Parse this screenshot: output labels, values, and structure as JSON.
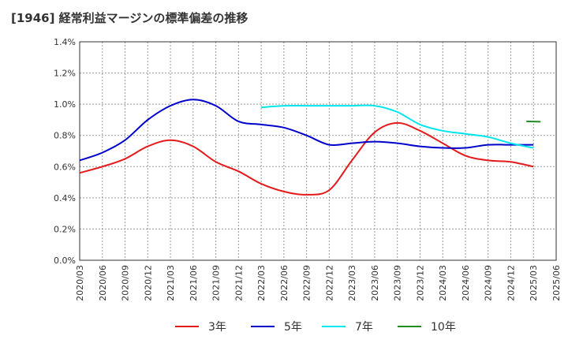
{
  "chart_data": {
    "type": "line",
    "title": "[1946]  経常利益マージンの標準偏差の推移",
    "xlabel": "",
    "ylabel": "",
    "x_tick_labels": [
      "2020/03",
      "2020/06",
      "2020/09",
      "2020/12",
      "2021/03",
      "2021/06",
      "2021/09",
      "2021/12",
      "2022/03",
      "2022/06",
      "2022/09",
      "2022/12",
      "2023/03",
      "2023/06",
      "2023/09",
      "2023/12",
      "2024/03",
      "2024/06",
      "2024/09",
      "2024/12",
      "2025/03",
      "2025/06"
    ],
    "y_tick_labels": [
      "0.0%",
      "0.2%",
      "0.4%",
      "0.6%",
      "0.8%",
      "1.0%",
      "1.2%",
      "1.4%"
    ],
    "y_ticks": [
      0,
      0.2,
      0.4,
      0.6,
      0.8,
      1.0,
      1.2,
      1.4
    ],
    "ylim": [
      0,
      1.4
    ],
    "grid": true,
    "legend_position": "bottom",
    "series": [
      {
        "name": "3年",
        "color": "#e41a1c",
        "values": [
          0.56,
          0.6,
          0.65,
          0.73,
          0.77,
          0.73,
          0.63,
          0.57,
          0.49,
          0.44,
          0.42,
          0.45,
          0.64,
          0.82,
          0.88,
          0.83,
          0.75,
          0.67,
          0.64,
          0.63,
          0.6,
          null
        ]
      },
      {
        "name": "5年",
        "color": "#0000cc",
        "values": [
          0.64,
          0.69,
          0.77,
          0.9,
          0.99,
          1.03,
          0.99,
          0.89,
          0.87,
          0.85,
          0.8,
          0.74,
          0.75,
          0.76,
          0.75,
          0.73,
          0.72,
          0.72,
          0.74,
          0.74,
          0.74,
          null
        ]
      },
      {
        "name": "7年",
        "color": "#00e5ee",
        "values": [
          null,
          null,
          null,
          null,
          null,
          null,
          null,
          null,
          0.98,
          0.99,
          0.99,
          0.99,
          0.99,
          0.99,
          0.95,
          0.87,
          0.83,
          0.81,
          0.79,
          0.75,
          0.72,
          null
        ]
      },
      {
        "name": "10年",
        "color": "#228b22",
        "values": [
          null,
          null,
          null,
          null,
          null,
          null,
          null,
          null,
          null,
          null,
          null,
          null,
          null,
          null,
          null,
          null,
          null,
          null,
          null,
          null,
          0.89,
          null
        ]
      }
    ]
  }
}
